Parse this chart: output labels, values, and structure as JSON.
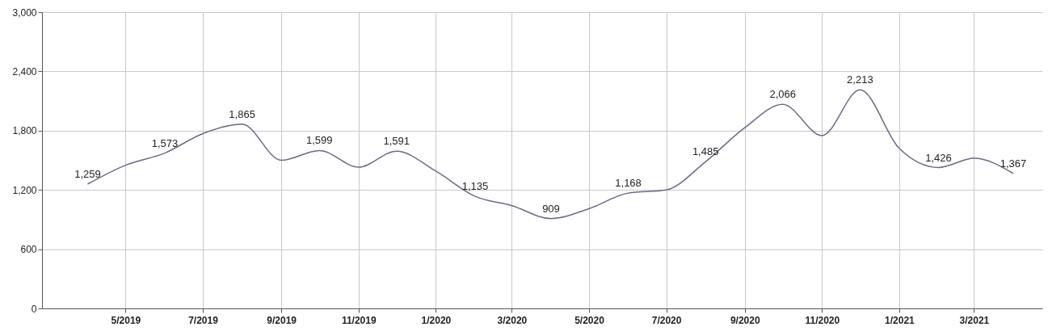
{
  "chart_data": {
    "type": "line",
    "x": [
      "2019-04",
      "2019-05",
      "2019-06",
      "2019-07",
      "2019-08",
      "2019-09",
      "2019-10",
      "2019-11",
      "2019-12",
      "2020-01",
      "2020-02",
      "2020-03",
      "2020-04",
      "2020-05",
      "2020-06",
      "2020-07",
      "2020-08",
      "2020-09",
      "2020-10",
      "2020-11",
      "2020-12",
      "2021-01",
      "2021-02",
      "2021-03",
      "2021-04"
    ],
    "series": [
      {
        "color": "#6c6a86",
        "values": [
          1259,
          1450,
          1573,
          1770,
          1865,
          1500,
          1599,
          1430,
          1591,
          1390,
          1135,
          1040,
          909,
          1010,
          1168,
          1200,
          1485,
          1830,
          2066,
          1750,
          2213,
          1620,
          1426,
          1520,
          1367
        ],
        "value_labels": [
          "1,259",
          null,
          "1,573",
          null,
          "1,865",
          null,
          "1,599",
          null,
          "1,591",
          null,
          "1,135",
          null,
          "909",
          null,
          "1,168",
          null,
          "1,485",
          null,
          "2,066",
          null,
          "2,213",
          null,
          "1,426",
          null,
          "1,367"
        ]
      }
    ],
    "xlim": [
      "2019-02-24",
      "2021-04-24"
    ],
    "xticks": [
      {
        "value": "2019-05",
        "label": "5/2019"
      },
      {
        "value": "2019-07",
        "label": "7/2019"
      },
      {
        "value": "2019-09",
        "label": "9/2019"
      },
      {
        "value": "2019-11",
        "label": "11/2019"
      },
      {
        "value": "2020-01",
        "label": "1/2020"
      },
      {
        "value": "2020-03",
        "label": "3/2020"
      },
      {
        "value": "2020-05",
        "label": "5/2020"
      },
      {
        "value": "2020-07",
        "label": "7/2020"
      },
      {
        "value": "2020-09",
        "label": "9/2020"
      },
      {
        "value": "2020-11",
        "label": "11/2020"
      },
      {
        "value": "2021-01",
        "label": "1/2021"
      },
      {
        "value": "2021-03",
        "label": "3/2021"
      }
    ],
    "ylim": [
      0,
      3000
    ],
    "yticks": [
      {
        "value": 0,
        "label": "0"
      },
      {
        "value": 600,
        "label": "600"
      },
      {
        "value": 1200,
        "label": "1,200"
      },
      {
        "value": 1800,
        "label": "1,800"
      },
      {
        "value": 2400,
        "label": "2,400"
      },
      {
        "value": 3000,
        "label": "3,000"
      }
    ],
    "grid": true,
    "marker": "none",
    "line_style": "solid"
  }
}
